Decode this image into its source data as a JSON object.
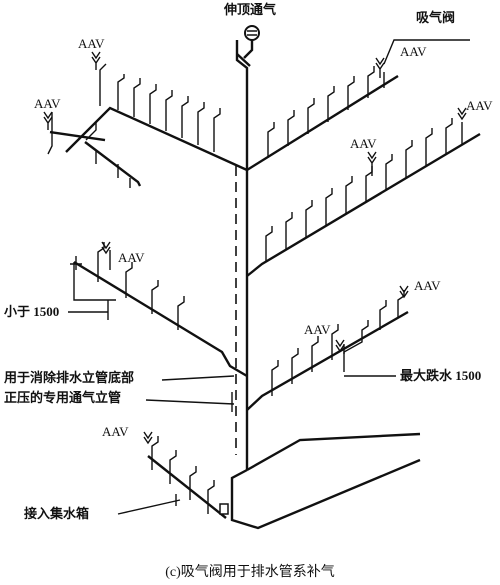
{
  "labels": {
    "roof_vent": "伸顶通气",
    "air_admittance_valve": "吸气阀",
    "aav": "AAV",
    "less_than": "小于 1500",
    "dedicated_vent": "用于消除排水立管底部",
    "dedicated_vent_line2": "正压的专用通气立管",
    "max_drop": "最大跌水 1500",
    "to_tank": "接入集水箱"
  },
  "caption": "(c)吸气阀用于排水管系补气"
}
